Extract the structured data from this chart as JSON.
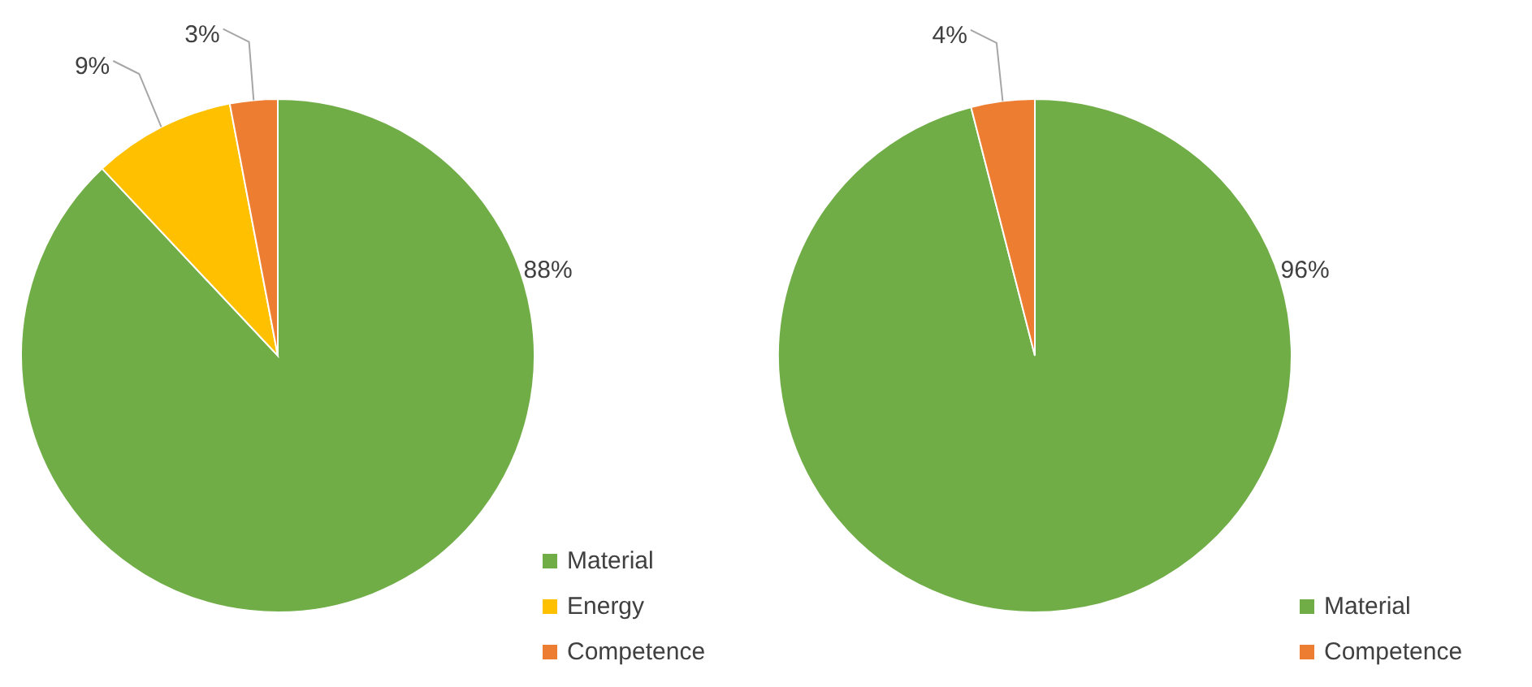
{
  "chart_data": [
    {
      "type": "pie",
      "categories": [
        "Material",
        "Energy",
        "Competence"
      ],
      "values": [
        88,
        9,
        3
      ],
      "colors": [
        "#70ad47",
        "#ffc000",
        "#ed7d31"
      ],
      "value_labels": [
        "88%",
        "9%",
        "3%"
      ],
      "legend": "bottom right"
    },
    {
      "type": "pie",
      "categories": [
        "Material",
        "Competence"
      ],
      "values": [
        96,
        4
      ],
      "colors": [
        "#70ad47",
        "#ed7d31"
      ],
      "value_labels": [
        "96%",
        "4%"
      ],
      "legend": "bottom right"
    }
  ]
}
